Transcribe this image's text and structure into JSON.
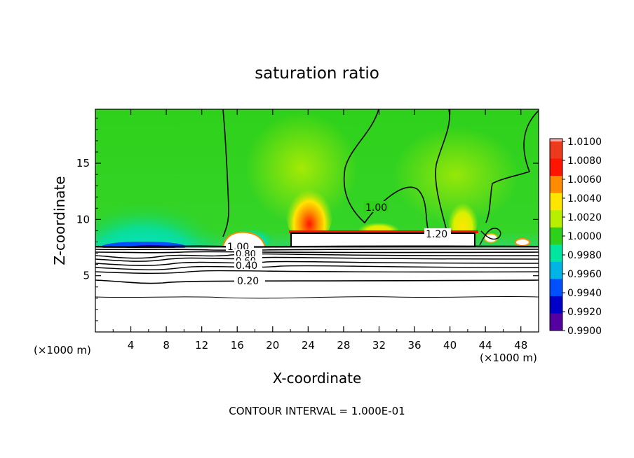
{
  "chart_data": {
    "type": "heatmap",
    "title": "saturation ratio",
    "xlabel": "X-coordinate",
    "ylabel": "Z-coordinate",
    "x_unit_label": "(×1000 m)",
    "x_unit_label_right": "(×1000 m)",
    "footer": "CONTOUR INTERVAL = 1.000E-01",
    "xlim": [
      0,
      50
    ],
    "ylim": [
      0,
      19.8
    ],
    "x_ticks": [
      4,
      8,
      12,
      16,
      20,
      24,
      28,
      32,
      36,
      40,
      44,
      48
    ],
    "y_ticks": [
      5,
      10,
      15
    ],
    "colorbar": {
      "labels": [
        "1.0100",
        "1.0080",
        "1.0060",
        "1.0040",
        "1.0020",
        "1.0000",
        "0.9980",
        "0.9960",
        "0.9940",
        "0.9920",
        "0.9900"
      ],
      "colors": [
        "#f5a6a6",
        "#ee3a1c",
        "#ff1400",
        "#ff8c00",
        "#ffe600",
        "#b8ee00",
        "#2ed11a",
        "#00e6a0",
        "#00b4e6",
        "#0050ff",
        "#0000c8",
        "#5500a0"
      ]
    },
    "contour_labels": [
      {
        "text": "1.00",
        "x": 31.5,
        "y": 10.5
      },
      {
        "text": "1.20",
        "x": 38.5,
        "y": 8.5
      },
      {
        "text": "1.00",
        "x": 16.5,
        "y": 7.5
      },
      {
        "text": "0.80",
        "x": 18.0,
        "y": 7.0
      },
      {
        "text": "0.60",
        "x": 18.0,
        "y": 6.5
      },
      {
        "text": "0.40",
        "x": 17.5,
        "y": 5.9
      },
      {
        "text": "0.20",
        "x": 17.5,
        "y": 4.5
      }
    ]
  }
}
